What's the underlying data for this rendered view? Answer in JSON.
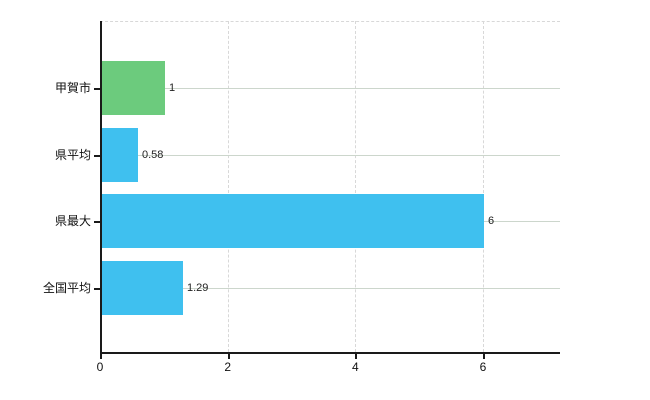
{
  "chart_data": {
    "type": "bar",
    "orientation": "horizontal",
    "title": "",
    "xlabel": "",
    "ylabel": "",
    "categories": [
      "甲賀市",
      "県平均",
      "県最大",
      "全国平均"
    ],
    "values": [
      1,
      0.58,
      6,
      1.29
    ],
    "value_labels": [
      "1",
      "0.58",
      "6",
      "1.29"
    ],
    "bar_colors": [
      "#6CCB7D",
      "#3FC0EF",
      "#3FC0EF",
      "#3FC0EF"
    ],
    "xlim": [
      0,
      7.2
    ],
    "x_ticks": [
      0,
      2,
      4,
      6
    ],
    "x_tick_labels": [
      "0",
      "2",
      "4",
      "6"
    ],
    "grid": true,
    "legend_position": "none",
    "colors": {
      "background": "#ffffff",
      "axis": "#1a1a1a",
      "gridline_horizontal": "#ccd6cc",
      "gridline_vertical": "#d8d8d8",
      "text": "#111111",
      "value_label_text": "#222222",
      "bar_green": "#6CCB7D",
      "bar_blue": "#3FC0EF"
    }
  }
}
